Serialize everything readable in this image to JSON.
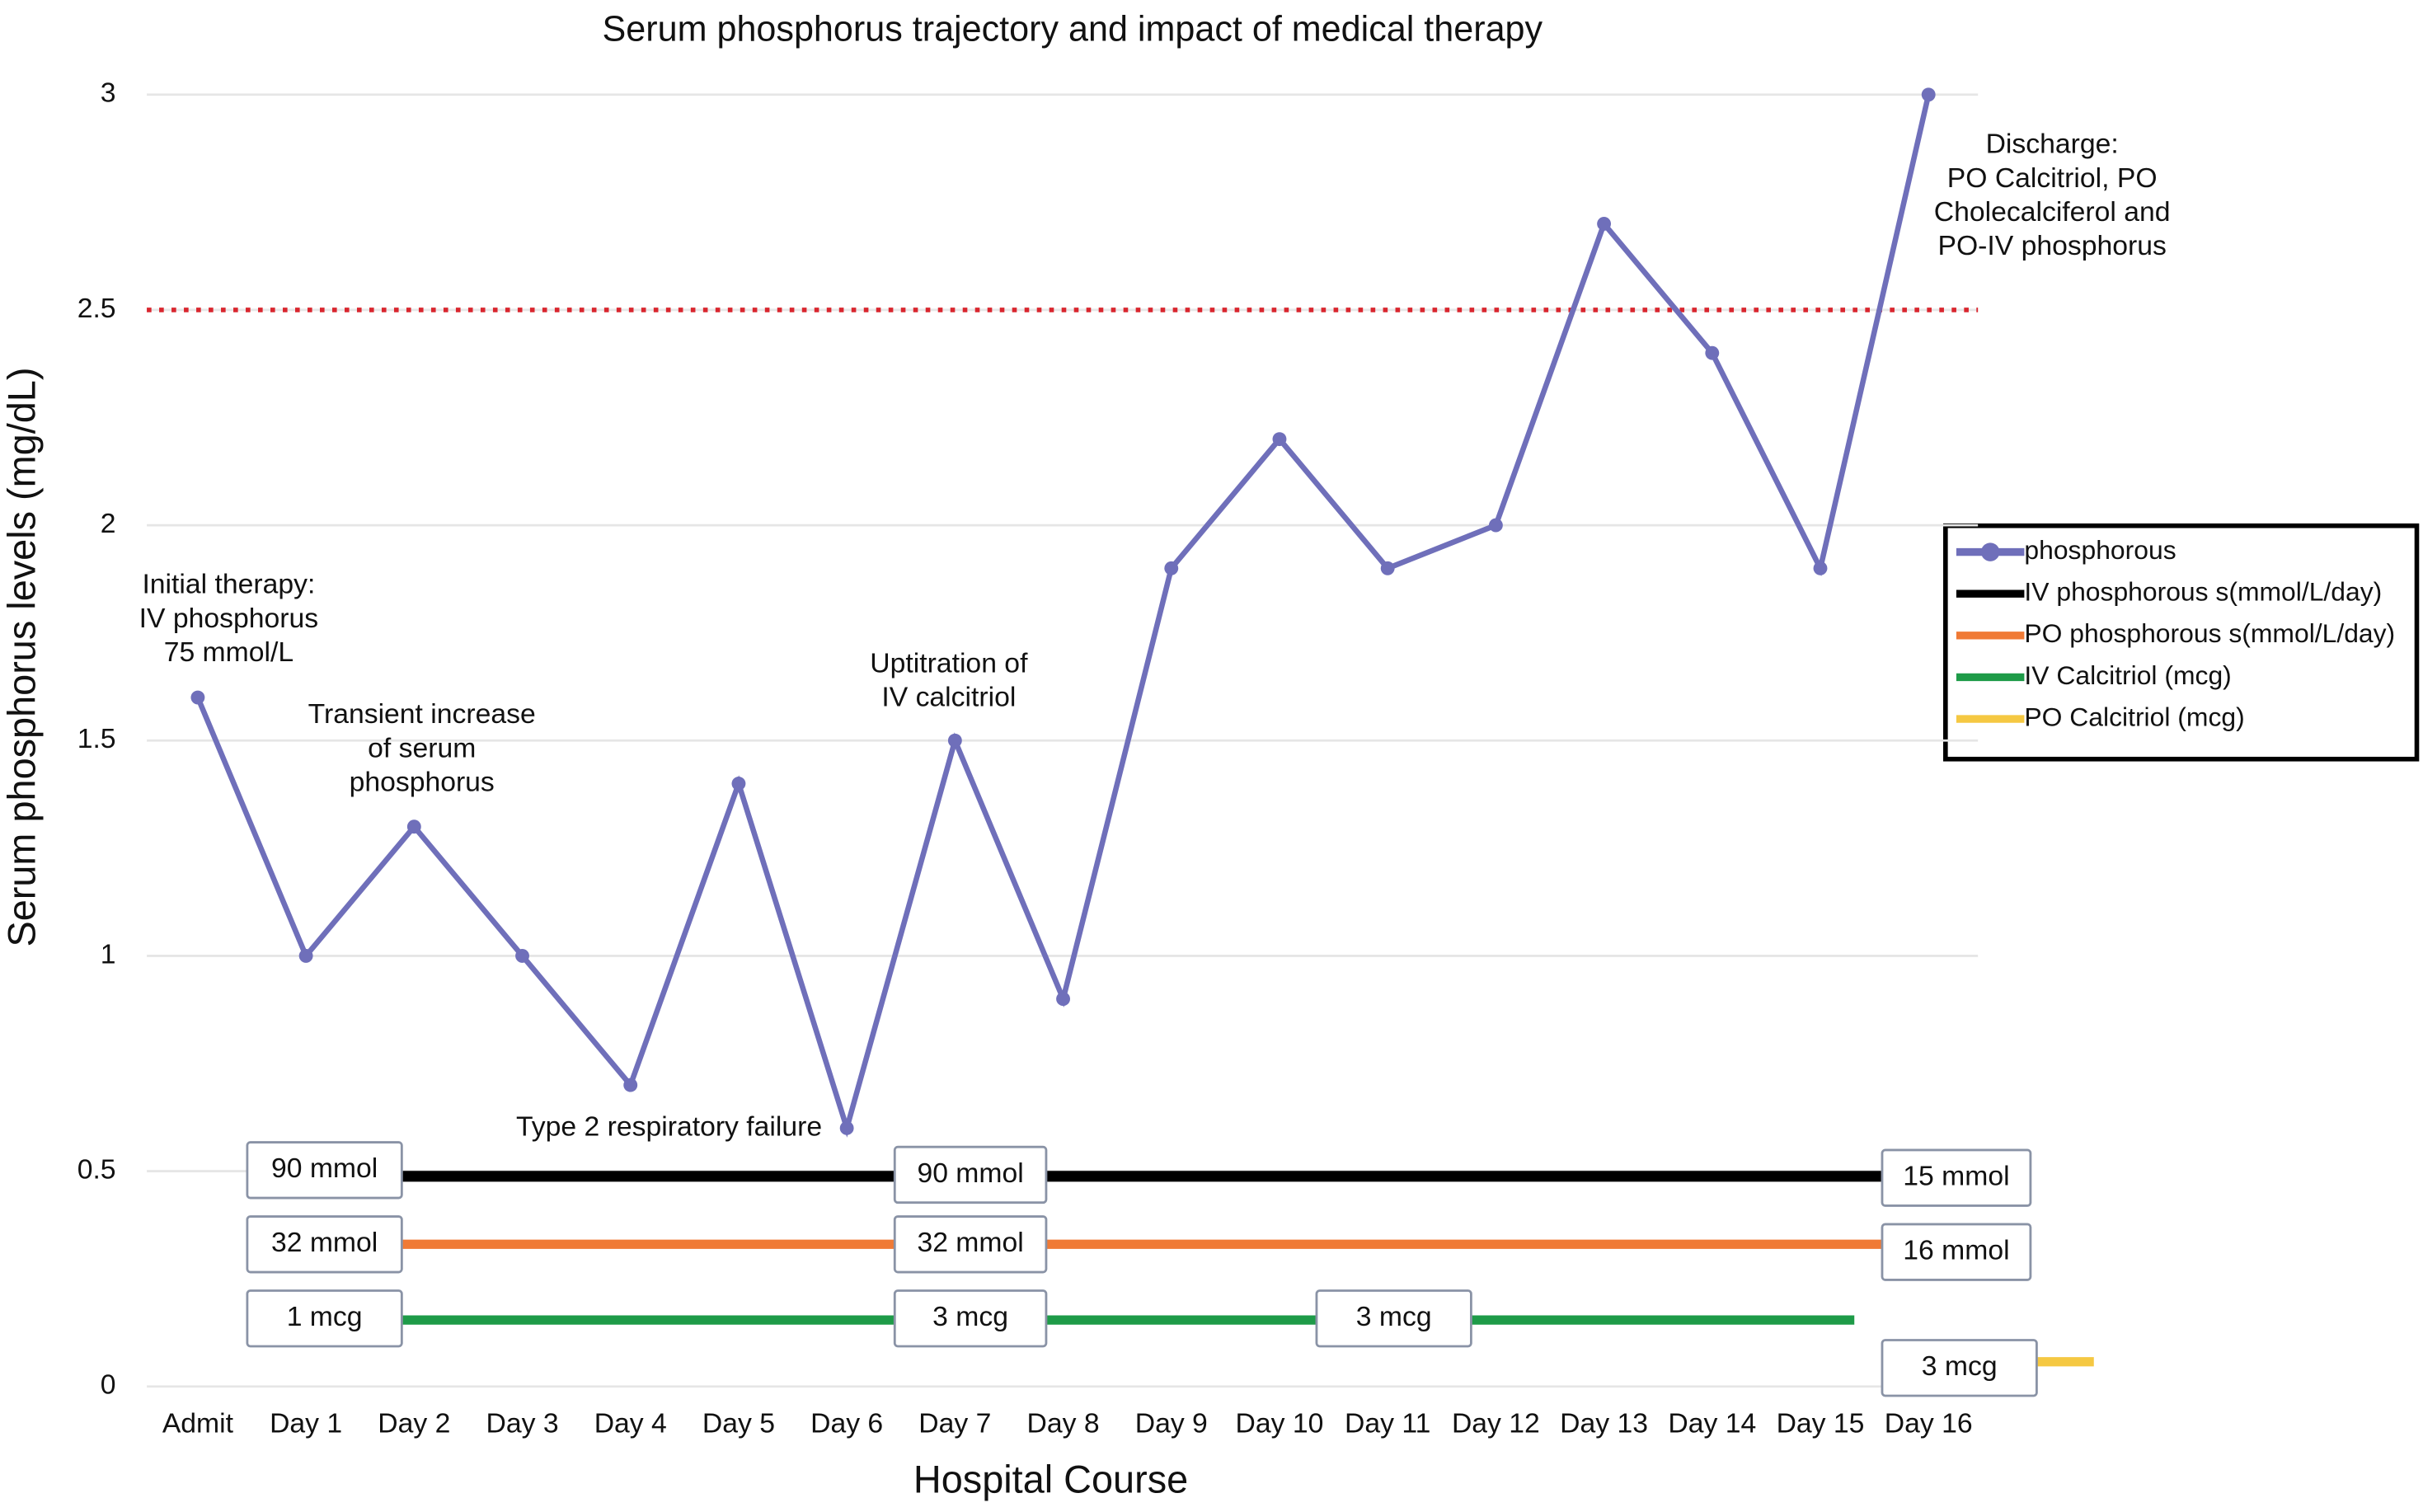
{
  "chart_data": {
    "type": "line",
    "title": "Serum phosphorus trajectory and impact of medical therapy",
    "xlabel": "Hospital Course",
    "ylabel": "Serum phosphorus levels (mg/dL)",
    "categories": [
      "Admit",
      "Day 1",
      "Day 2",
      "Day 3",
      "Day 4",
      "Day 5",
      "Day 6",
      "Day 7",
      "Day 8",
      "Day 9",
      "Day 10",
      "Day 11",
      "Day 12",
      "Day 13",
      "Day 14",
      "Day 15",
      "Day 16"
    ],
    "series": [
      {
        "name": "phosphorous",
        "color": "#6f6fba",
        "values": [
          1.6,
          1.0,
          1.3,
          1.0,
          0.7,
          1.4,
          0.6,
          1.5,
          0.9,
          1.9,
          2.2,
          1.9,
          2.0,
          2.7,
          2.4,
          1.9,
          3.0
        ]
      }
    ],
    "ylim": [
      0,
      3
    ],
    "yticks": [
      0,
      0.5,
      1,
      1.5,
      2,
      2.5,
      3
    ],
    "grid": true,
    "threshold": {
      "value": 2.5,
      "color": "#d9262e"
    },
    "annotations": [
      [
        "Initial therapy:",
        "IV phosphorus",
        "75 mmol/L"
      ],
      [
        "Transient increase",
        "of serum",
        "phosphorus"
      ],
      [
        "Type 2 respiratory failure"
      ],
      [
        "Uptitration of",
        "IV calcitriol"
      ],
      [
        "Discharge:",
        "PO Calcitriol, PO",
        "Cholecalciferol and",
        "PO-IV phosphorus"
      ]
    ],
    "therapies": [
      {
        "name": "IV phosphorous s(mmol/L/day)",
        "color": "#000000",
        "labels": [
          "90 mmol",
          "90 mmol",
          "15 mmol"
        ]
      },
      {
        "name": "PO phosphorous s(mmol/L/day)",
        "color": "#f07a35",
        "labels": [
          "32 mmol",
          "32 mmol",
          "16 mmol"
        ]
      },
      {
        "name": "IV Calcitriol (mcg)",
        "color": "#1e9b48",
        "labels": [
          "1 mcg",
          "3 mcg",
          "3 mcg"
        ]
      },
      {
        "name": "PO Calcitriol (mcg)",
        "color": "#f5c842",
        "labels": [
          "3 mcg"
        ]
      }
    ]
  }
}
